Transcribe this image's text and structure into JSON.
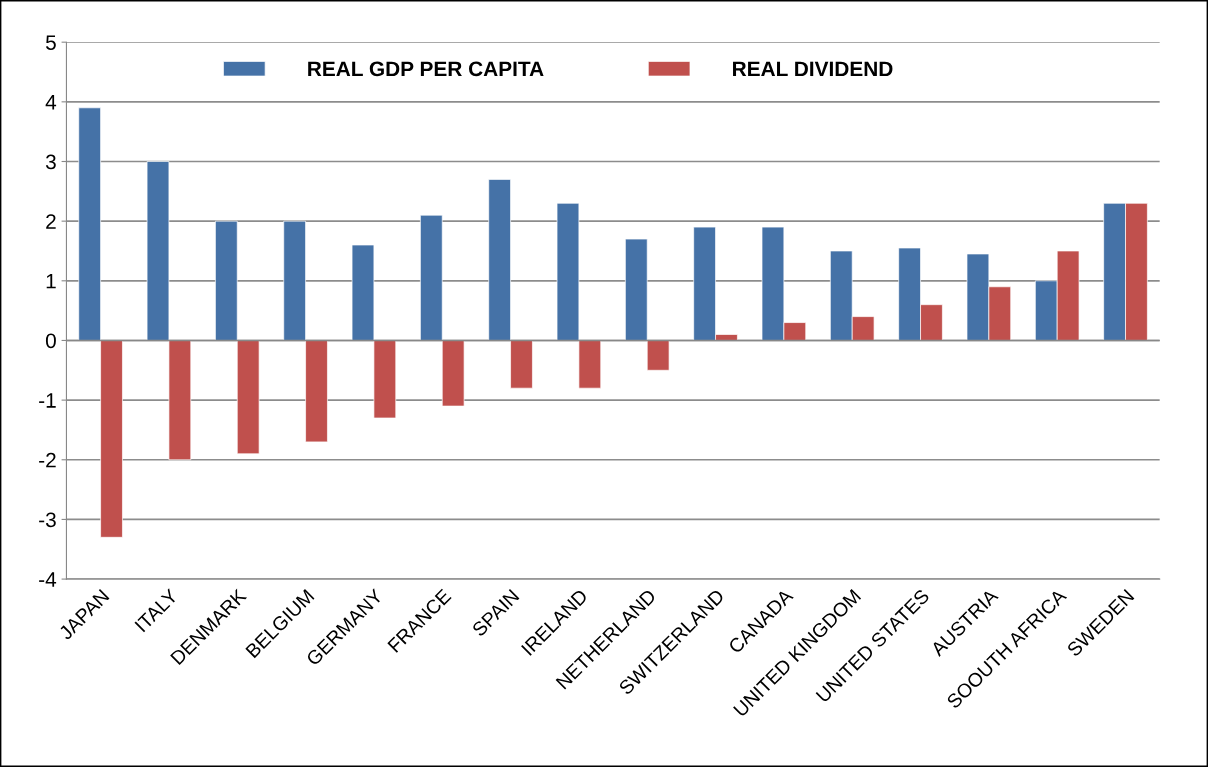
{
  "chart_data": {
    "type": "bar",
    "categories": [
      "JAPAN",
      "ITALY",
      "DENMARK",
      "BELGIUM",
      "GERMANY",
      "FRANCE",
      "SPAIN",
      "IRELAND",
      "NETHERLAND",
      "SWITZERLAND",
      "CANADA",
      "UNITED KINGDOM",
      "UNITED STATES",
      "AUSTRIA",
      "SOOUTH AFRICA",
      "SWEDEN"
    ],
    "series": [
      {
        "name": "REAL GDP PER CAPITA",
        "color": "#4572a7",
        "values": [
          3.9,
          3.0,
          2.0,
          2.0,
          1.6,
          2.1,
          2.7,
          2.3,
          1.7,
          1.9,
          1.9,
          1.5,
          1.55,
          1.45,
          1.0,
          2.3
        ]
      },
      {
        "name": "REAL DIVIDEND",
        "color": "#c0504d",
        "values": [
          -3.3,
          -2.0,
          -1.9,
          -1.7,
          -1.3,
          -1.1,
          -0.8,
          -0.8,
          -0.5,
          0.1,
          0.3,
          0.4,
          0.6,
          0.9,
          1.5,
          2.3
        ]
      }
    ],
    "ylim": [
      -4,
      5
    ],
    "yticks": [
      -4,
      -3,
      -2,
      -1,
      0,
      1,
      2,
      3,
      4,
      5
    ],
    "grid": "y",
    "legend": "top"
  }
}
